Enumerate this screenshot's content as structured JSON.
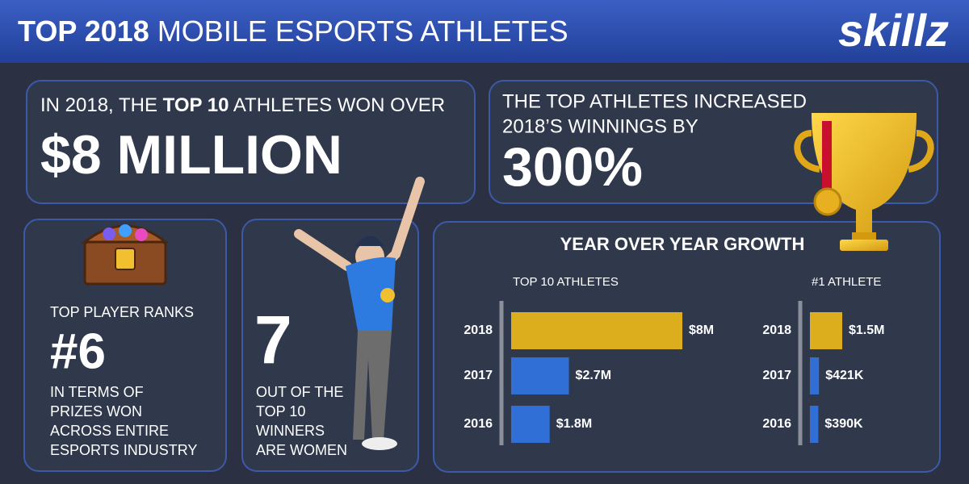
{
  "header": {
    "title_bold": "TOP 2018",
    "title_rest": "MOBILE ESPORTS ATHLETES",
    "logo": "skillz"
  },
  "cards": {
    "winnings": {
      "pre": "IN 2018, THE",
      "bold": "TOP 10",
      "post": "ATHLETES WON OVER",
      "big": "$8 MILLION"
    },
    "increase": {
      "lines": [
        "THE TOP ATHLETES INCREASED",
        "2018’S WINNINGS BY"
      ],
      "big": "300%"
    },
    "rank": {
      "label": "TOP PLAYER RANKS",
      "big": "#6",
      "lines": [
        "IN TERMS OF",
        "PRIZES WON",
        "ACROSS ENTIRE",
        "ESPORTS INDUSTRY"
      ]
    },
    "women": {
      "big": "7",
      "lines": [
        "OUT OF THE",
        "TOP 10",
        "WINNERS",
        "ARE WOMEN"
      ]
    },
    "growth_title": "YEAR OVER YEAR GROWTH"
  },
  "chart_data": [
    {
      "type": "bar",
      "orientation": "horizontal",
      "title": "TOP 10 ATHLETES",
      "categories": [
        "2018",
        "2017",
        "2016"
      ],
      "values": [
        8000000,
        2700000,
        1800000
      ],
      "value_labels": [
        "$8M",
        "$2.7M",
        "$1.8M"
      ],
      "colors": [
        "#dcae1d",
        "#2f6fd6",
        "#2f6fd6"
      ],
      "xlim": [
        0,
        8000000
      ]
    },
    {
      "type": "bar",
      "orientation": "horizontal",
      "title": "#1 ATHLETE",
      "categories": [
        "2018",
        "2017",
        "2016"
      ],
      "values": [
        1500000,
        421000,
        390000
      ],
      "value_labels": [
        "$1.5M",
        "$421K",
        "$390K"
      ],
      "colors": [
        "#dcae1d",
        "#2f6fd6",
        "#2f6fd6"
      ],
      "xlim": [
        0,
        1500000
      ]
    }
  ]
}
